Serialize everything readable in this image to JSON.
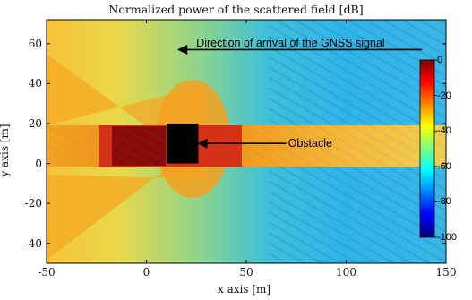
{
  "chart_data": {
    "type": "heatmap",
    "title": "Normalized power of the scattered field [dB]",
    "xlabel": "x axis [m]",
    "ylabel": "y axis [m]",
    "xlim": [
      -50,
      150
    ],
    "ylim": [
      -50,
      72
    ],
    "x_ticks": [
      -50,
      0,
      50,
      100,
      150
    ],
    "y_ticks": [
      -40,
      -20,
      0,
      20,
      40,
      60
    ],
    "colorbar": {
      "range": [
        -100,
        0
      ],
      "ticks": [
        0,
        -20,
        -40,
        -60,
        -80,
        -100
      ],
      "colormap": "jet",
      "placement": "inside-right"
    },
    "obstacle": {
      "x": [
        10,
        26
      ],
      "y": [
        0,
        20
      ],
      "color": "#000000"
    },
    "annotations": [
      {
        "text": "Direction of arrival of the GNSS signal",
        "arrow_from": [
          138,
          57
        ],
        "arrow_to": [
          16,
          57
        ]
      },
      {
        "text": "Obstacle",
        "arrow_from": [
          70,
          10
        ],
        "arrow_to": [
          26,
          10
        ]
      }
    ]
  }
}
